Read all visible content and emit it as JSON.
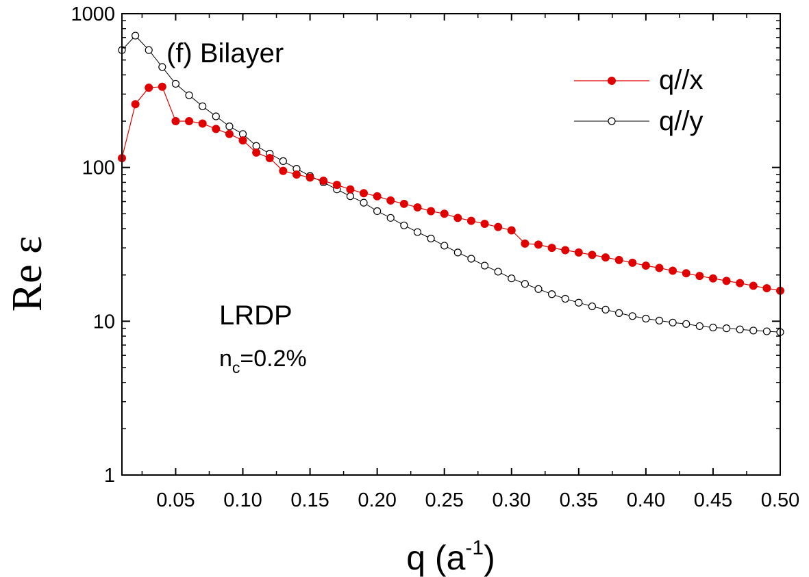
{
  "chart_data": {
    "type": "line",
    "title": "(f) Bilayer",
    "xlabel": {
      "base": "q (a",
      "sup": "-1",
      "close": ")"
    },
    "ylabel": "Re ε",
    "xlim": [
      0.01,
      0.5
    ],
    "ylim": [
      1,
      1000
    ],
    "yscale": "log",
    "x_ticks": [
      0.05,
      0.1,
      0.15,
      0.2,
      0.25,
      0.3,
      0.35,
      0.4,
      0.45,
      0.5
    ],
    "x_tick_labels": [
      "0.05",
      "0.10",
      "0.15",
      "0.20",
      "0.25",
      "0.30",
      "0.35",
      "0.40",
      "0.45",
      "0.50"
    ],
    "y_ticks": [
      1,
      10,
      100,
      1000
    ],
    "y_tick_labels": [
      "1",
      "10",
      "100",
      "1000"
    ],
    "legend_position": "top-right",
    "annotations": {
      "method": "LRDP",
      "density_base": "n",
      "density_sub": "c",
      "density_value": "=0.2%"
    },
    "x": [
      0.01,
      0.02,
      0.03,
      0.04,
      0.05,
      0.06,
      0.07,
      0.08,
      0.09,
      0.1,
      0.11,
      0.12,
      0.13,
      0.14,
      0.15,
      0.16,
      0.17,
      0.18,
      0.19,
      0.2,
      0.21,
      0.22,
      0.23,
      0.24,
      0.25,
      0.26,
      0.27,
      0.28,
      0.29,
      0.3,
      0.31,
      0.32,
      0.33,
      0.34,
      0.35,
      0.36,
      0.37,
      0.38,
      0.39,
      0.4,
      0.41,
      0.42,
      0.43,
      0.44,
      0.45,
      0.46,
      0.47,
      0.48,
      0.49,
      0.5
    ],
    "series": [
      {
        "name": "q//x",
        "color": "#e00000",
        "marker": "filled-circle",
        "values": [
          115,
          258,
          330,
          335,
          200,
          200,
          193,
          178,
          165,
          150,
          125,
          115,
          95,
          90,
          86,
          82,
          77,
          72,
          68,
          65,
          61,
          58,
          55,
          52,
          50,
          47,
          45,
          43,
          41,
          39,
          32,
          31.5,
          30,
          29,
          28,
          27,
          26,
          25,
          24,
          23,
          22.2,
          21.3,
          20.5,
          19.7,
          19,
          18.3,
          17.7,
          17,
          16.4,
          15.8
        ]
      },
      {
        "name": "q//y",
        "color": "#000000",
        "marker": "open-circle",
        "values": [
          580,
          720,
          580,
          450,
          350,
          295,
          250,
          215,
          185,
          165,
          138,
          123,
          110,
          98,
          88,
          80,
          72,
          65,
          59,
          52,
          47,
          42,
          38,
          34.5,
          31,
          28,
          25.5,
          23,
          21,
          19,
          17.5,
          16.2,
          15,
          14,
          13.2,
          12.5,
          11.9,
          11.3,
          10.8,
          10.4,
          10.1,
          9.8,
          9.6,
          9.3,
          9.1,
          9.0,
          8.85,
          8.7,
          8.6,
          8.5
        ]
      }
    ]
  }
}
